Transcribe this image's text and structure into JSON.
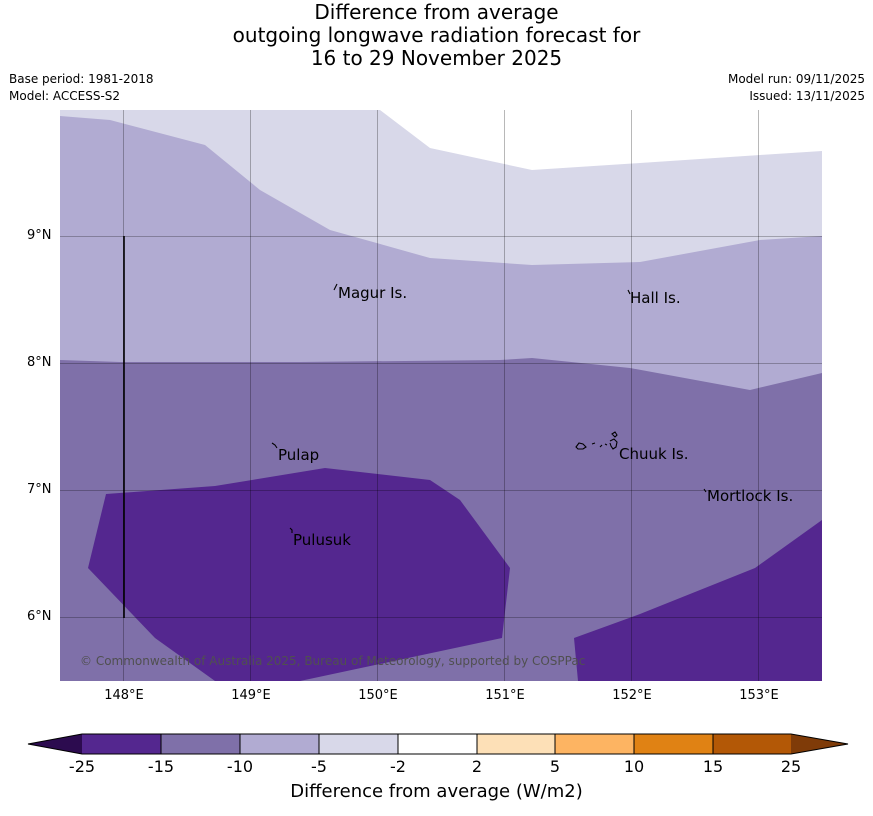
{
  "title": {
    "line1": "Difference from average",
    "line2": "outgoing longwave radiation forecast for",
    "line3": "16 to 29 November 2025"
  },
  "meta": {
    "base_period": "Base period: 1981-2018",
    "model": "Model: ACCESS-S2",
    "model_run": "Model run: 09/11/2025",
    "issued": "Issued: 13/11/2025"
  },
  "axes": {
    "lat_labels": [
      "9°N",
      "8°N",
      "7°N",
      "6°N"
    ],
    "lon_labels": [
      "148°E",
      "149°E",
      "150°E",
      "151°E",
      "152°E",
      "153°E"
    ],
    "lon_range": [
      147.5,
      153.5
    ],
    "lat_range": [
      5.5,
      10.0
    ]
  },
  "places": [
    {
      "name": "Magur Is."
    },
    {
      "name": "Hall Is."
    },
    {
      "name": "Pulap"
    },
    {
      "name": "Chuuk Is."
    },
    {
      "name": "Mortlock Is."
    },
    {
      "name": "Pulusuk"
    }
  ],
  "credit": "© Commonwealth of Australia 2025, Bureau of Meteorology, supported by COSPPac",
  "colorbar": {
    "label": "Difference from average (W/m2)",
    "ticks": [
      "-25",
      "-15",
      "-10",
      "-5",
      "-2",
      "2",
      "5",
      "10",
      "15",
      "25"
    ],
    "colors": {
      "below": "#2c0b4f",
      "c1": "#54278f",
      "c2": "#7f70a9",
      "c3": "#b1abd2",
      "c4": "#d8d8e9",
      "c5": "#ffffff",
      "c6": "#fde0b7",
      "c7": "#fdb462",
      "c8": "#e08214",
      "c9": "#b35806",
      "above": "#7f3b08"
    }
  }
}
